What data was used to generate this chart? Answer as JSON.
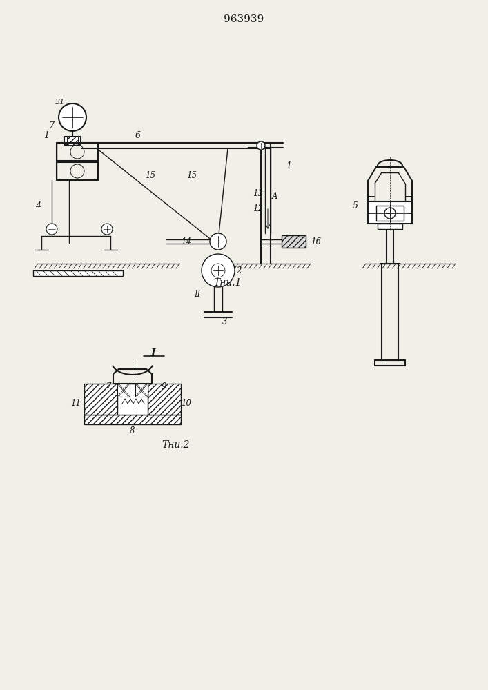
{
  "title": "963939",
  "bg_color": "#f0efe8",
  "line_color": "#1a1a1a",
  "fig1_caption": "Τни.1",
  "fig2_caption": "Τни.2"
}
